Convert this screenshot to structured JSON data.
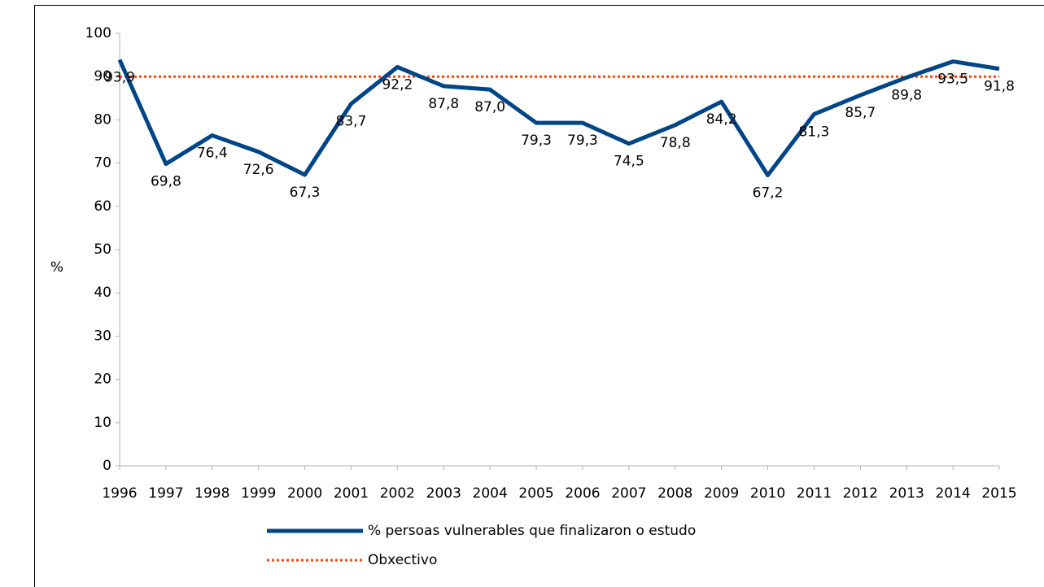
{
  "chart_data": {
    "type": "line",
    "y_label": "%",
    "categories": [
      "1996",
      "1997",
      "1998",
      "1999",
      "2000",
      "2001",
      "2002",
      "2003",
      "2004",
      "2005",
      "2006",
      "2007",
      "2008",
      "2009",
      "2010",
      "2011",
      "2012",
      "2013",
      "2014",
      "2015"
    ],
    "series": [
      {
        "name": "% persoas vulnerables que finalizaron o estudo",
        "color": "#004586",
        "dash": false,
        "values": [
          93.9,
          69.8,
          76.4,
          72.6,
          67.3,
          83.7,
          92.2,
          87.8,
          87.0,
          79.3,
          79.3,
          74.5,
          78.8,
          84.2,
          67.2,
          81.3,
          85.7,
          89.8,
          93.5,
          91.8
        ],
        "value_labels": [
          "93,9",
          "69,8",
          "76,4",
          "72,6",
          "67,3",
          "83,7",
          "92,2",
          "87,8",
          "87,0",
          "79,3",
          "79,3",
          "74,5",
          "78,8",
          "84,2",
          "67,2",
          "81,3",
          "85,7",
          "89,8",
          "93,5",
          "91,8"
        ]
      },
      {
        "name": "Obxectivo",
        "color": "#ff420e",
        "dash": true,
        "values": [
          90,
          90,
          90,
          90,
          90,
          90,
          90,
          90,
          90,
          90,
          90,
          90,
          90,
          90,
          90,
          90,
          90,
          90,
          90,
          90
        ]
      }
    ],
    "ylim": [
      0,
      100
    ],
    "yticks": [
      0,
      10,
      20,
      30,
      40,
      50,
      60,
      70,
      80,
      90,
      100
    ],
    "grid": false
  }
}
